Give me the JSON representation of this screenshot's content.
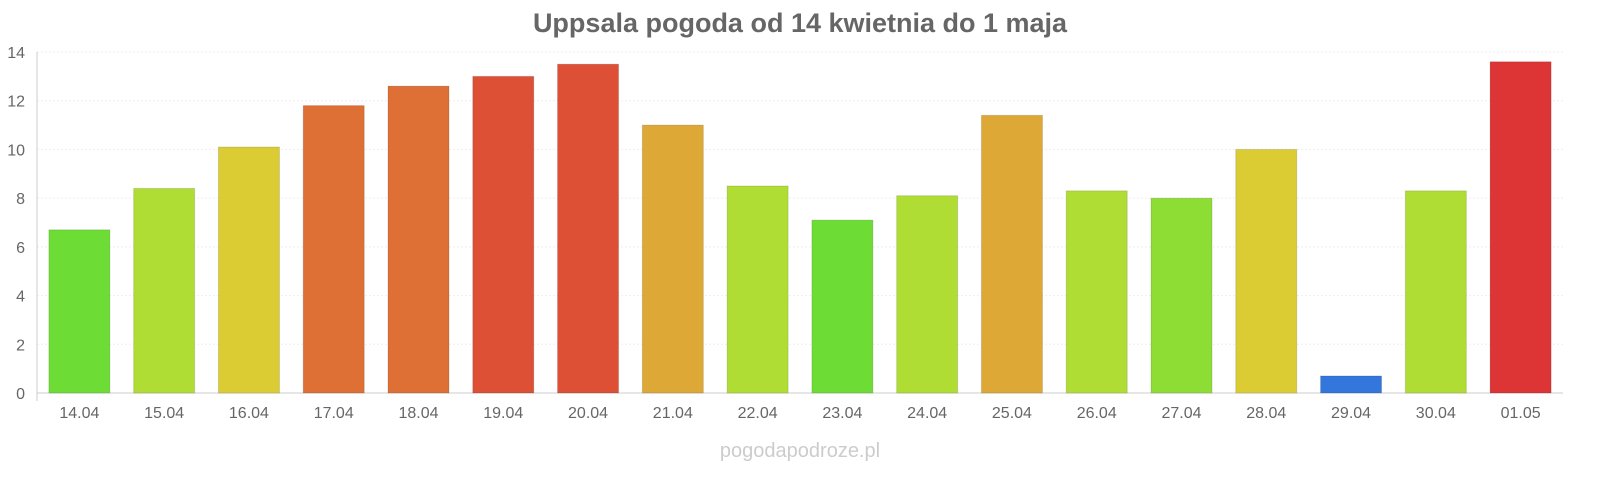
{
  "chart_data": {
    "type": "bar",
    "title": "Uppsala pogoda od 14 kwietnia do 1 maja",
    "xlabel": "",
    "ylabel": "",
    "ylim": [
      0,
      14
    ],
    "yticks": [
      0,
      2,
      4,
      6,
      8,
      10,
      12,
      14
    ],
    "grid": true,
    "categories": [
      "14.04",
      "15.04",
      "16.04",
      "17.04",
      "18.04",
      "19.04",
      "20.04",
      "21.04",
      "22.04",
      "23.04",
      "24.04",
      "25.04",
      "26.04",
      "27.04",
      "28.04",
      "29.04",
      "30.04",
      "01.05"
    ],
    "values": [
      6.7,
      8.4,
      10.1,
      11.8,
      12.6,
      13.0,
      13.5,
      11.0,
      8.5,
      7.1,
      8.1,
      11.4,
      8.3,
      8.0,
      10.0,
      0.7,
      8.3,
      13.6
    ],
    "colors": [
      "#6ddd35",
      "#b0dd33",
      "#dccc33",
      "#de7035",
      "#de7035",
      "#dd5035",
      "#dd5035",
      "#dda835",
      "#b0dd33",
      "#6ddd35",
      "#b0dd33",
      "#dda835",
      "#b0dd33",
      "#8ddd35",
      "#dccc33",
      "#3377dd",
      "#b0dd33",
      "#dd3535"
    ]
  },
  "footer": {
    "credit": "pogodapodroze.pl"
  }
}
